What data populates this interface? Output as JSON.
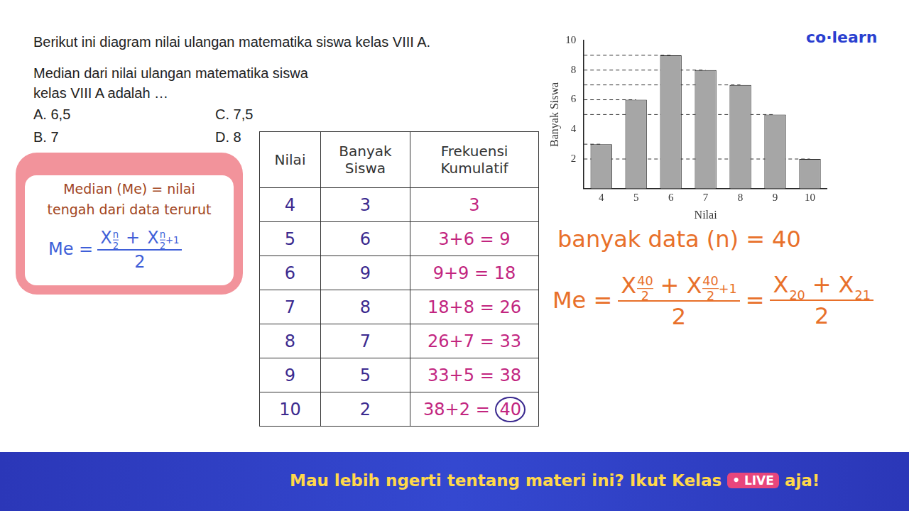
{
  "header": {
    "logo": "co·learn"
  },
  "question": {
    "lines": [
      "Berikut ini diagram nilai ulangan matematika siswa kelas VIII A.",
      "Median dari nilai ulangan matematika siswa",
      "kelas VIII A adalah …"
    ],
    "options": [
      [
        "A.",
        "6,5"
      ],
      [
        "C.",
        "7,5"
      ],
      [
        "B.",
        "7"
      ],
      [
        "D.",
        "8"
      ]
    ]
  },
  "formula_box": {
    "definition": [
      "Median (Me) = nilai",
      "tengah dari data terurut"
    ],
    "lhs": "Me",
    "eq": "=",
    "terms": [
      {
        "var": "X",
        "sub_top": "n",
        "sub_bottom": "2",
        "sub_extra": ""
      },
      {
        "var": "X",
        "sub_top": "n",
        "sub_bottom": "2",
        "sub_extra": "+1"
      }
    ],
    "op": "+",
    "denominator": "2"
  },
  "table": {
    "header": [
      [
        "Nilai"
      ],
      [
        "Banyak",
        "Siswa"
      ],
      [
        "Frekuensi",
        "Kumulatif"
      ]
    ],
    "rows": [
      [
        "4",
        "3",
        {
          "expr": "",
          "result": "3"
        }
      ],
      [
        "5",
        "6",
        {
          "expr": "3+6 =",
          "result": "9"
        }
      ],
      [
        "6",
        "9",
        {
          "expr": "9+9 =",
          "result": "18"
        }
      ],
      [
        "7",
        "8",
        {
          "expr": "18+8 =",
          "result": "26"
        }
      ],
      [
        "8",
        "7",
        {
          "expr": "26+7 =",
          "result": "33"
        }
      ],
      [
        "9",
        "5",
        {
          "expr": "33+5 =",
          "result": "38"
        }
      ],
      [
        "10",
        "2",
        {
          "expr": "38+2 =",
          "result": "40"
        }
      ]
    ]
  },
  "notes": {
    "n_line": "banyak data (n) = 40",
    "lhs": "Me",
    "eq": "=",
    "terms": [
      {
        "var": "X",
        "sub_top": "40",
        "sub_bottom": "2",
        "sub_extra": ""
      },
      {
        "var": "X",
        "sub_top": "40",
        "sub_bottom": "2",
        "sub_extra": "+1"
      }
    ],
    "op": "+",
    "denominator": "2",
    "result_terms": [
      {
        "var": "X",
        "sub": "20"
      },
      {
        "var": "X",
        "sub": "21"
      }
    ]
  },
  "banner": {
    "text": "Mau lebih ngerti tentang materi ini? Ikut Kelas",
    "badge": "• LIVE",
    "end": "aja!"
  },
  "chart_data": {
    "type": "bar",
    "x_label": "Nilai",
    "y_label": "Banyak Siswa",
    "categories": [
      "4",
      "5",
      "6",
      "7",
      "8",
      "9",
      "10"
    ],
    "values": [
      3,
      6,
      9,
      8,
      7,
      5,
      2
    ],
    "color": "#a6a6a6",
    "ylim": [
      0,
      10
    ],
    "yticks": [
      2,
      4,
      6,
      8,
      10
    ],
    "grid": false
  }
}
